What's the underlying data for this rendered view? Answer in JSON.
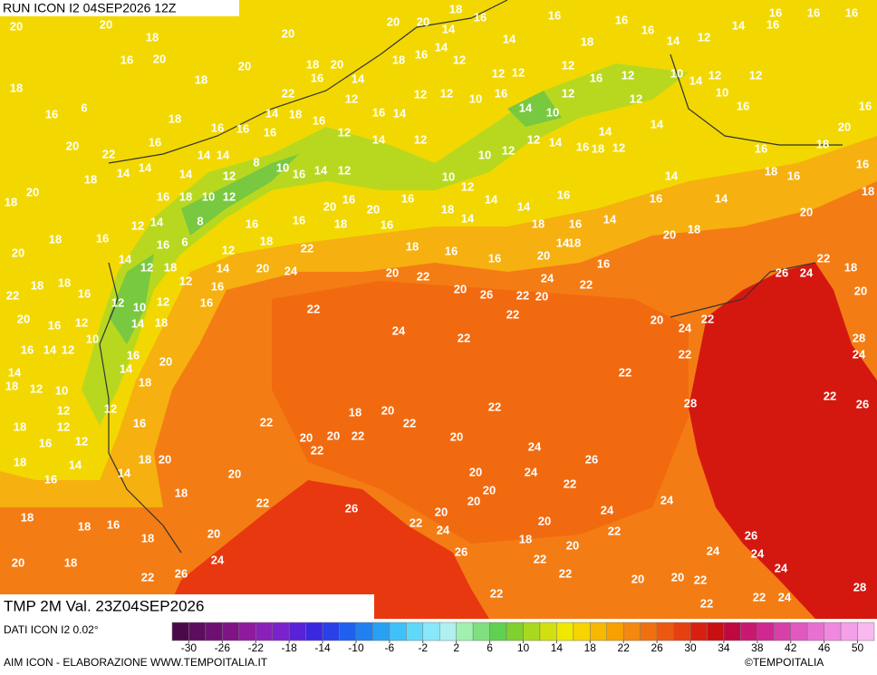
{
  "header": {
    "run": "RUN ICON I2 04SEP2026 12Z"
  },
  "map": {
    "labels": [
      20,
      20,
      18,
      16,
      20,
      18,
      6,
      16,
      20,
      20,
      18,
      20,
      16,
      22,
      18,
      18,
      16,
      16,
      14,
      16,
      18,
      16,
      12,
      14,
      12,
      16,
      14,
      14,
      20,
      20,
      18,
      16,
      18,
      16,
      14,
      12,
      14,
      14,
      12,
      12,
      12,
      16,
      18,
      16,
      16,
      14,
      12,
      14,
      16,
      16,
      16,
      16,
      12,
      12,
      10,
      16,
      14,
      10,
      12,
      16,
      12,
      12,
      10,
      14,
      12,
      12,
      10,
      16,
      16,
      20,
      14,
      14,
      16,
      18,
      12,
      14,
      12,
      12,
      10,
      12,
      12,
      14,
      16,
      10,
      8,
      12,
      14,
      14,
      16,
      14,
      14,
      22,
      18,
      20,
      20,
      18,
      14,
      18,
      16,
      10,
      12,
      8,
      14,
      12,
      6,
      16,
      16,
      16,
      20,
      16,
      20,
      16,
      18,
      16,
      10,
      12,
      14,
      14,
      18,
      18,
      14,
      18,
      16,
      16,
      20,
      14,
      16,
      18,
      16,
      14,
      16,
      14,
      16,
      14,
      18,
      16,
      20,
      16,
      18,
      16,
      18,
      20,
      18,
      22,
      18,
      26,
      24,
      20,
      20,
      18,
      22,
      18,
      18,
      16,
      20,
      12,
      16,
      10,
      14,
      12,
      18,
      12,
      16,
      14,
      12,
      18,
      20,
      24,
      16,
      22,
      16,
      12,
      14,
      18,
      10,
      12,
      16,
      14,
      12,
      14,
      12,
      10,
      18,
      16,
      14,
      20,
      18,
      12,
      12,
      18,
      12,
      16,
      12,
      16,
      18,
      16,
      14,
      14,
      18,
      20,
      18,
      20,
      18,
      18,
      16,
      18,
      20,
      18,
      20,
      24,
      26,
      22,
      22,
      26,
      22,
      24,
      20,
      26,
      18,
      22,
      22,
      20,
      20,
      20,
      20,
      20,
      22,
      24,
      24,
      26,
      24,
      22,
      24,
      20,
      20,
      22,
      22,
      22,
      24,
      24,
      26,
      24,
      22,
      24,
      28,
      22,
      20,
      22,
      20,
      22,
      18,
      20,
      22,
      20,
      22,
      24,
      22,
      22,
      26,
      20,
      22,
      20,
      24,
      22,
      20,
      22,
      22,
      20,
      22,
      22,
      22,
      24,
      28,
      22,
      26,
      28,
      24,
      20,
      22
    ]
  },
  "legend": {
    "title": "TMP 2M Val. 23Z04SEP2026",
    "source": "DATI ICON I2 0.02°",
    "colors": [
      "#4a0a4a",
      "#5c0d5e",
      "#6e1072",
      "#801386",
      "#8f1a9e",
      "#8a20b8",
      "#7a22cc",
      "#5a22d8",
      "#3a28e0",
      "#2a40e8",
      "#2060ee",
      "#2080f0",
      "#28a0f4",
      "#40c0f8",
      "#60d8fa",
      "#88e8fa",
      "#b0f0f0",
      "#a0f0b0",
      "#80e080",
      "#60d050",
      "#80d030",
      "#a8d820",
      "#d0e010",
      "#f0e800",
      "#f8d400",
      "#f8b800",
      "#f8a000",
      "#f48810",
      "#f07010",
      "#ec5810",
      "#e44010",
      "#d82010",
      "#c81010",
      "#c00840",
      "#c81870",
      "#d02890",
      "#d840a8",
      "#e058c0",
      "#e870d0",
      "#f088e0",
      "#f4a0e8",
      "#f8b8f0"
    ],
    "ticks": [
      -30,
      -26,
      -22,
      -18,
      -14,
      -10,
      -6,
      -2,
      2,
      6,
      10,
      14,
      18,
      22,
      26,
      30,
      34,
      38,
      42,
      46,
      50
    ]
  },
  "footer": {
    "left": "AIM ICON - ELABORAZIONE WWW.TEMPOITALIA.IT",
    "right": "©TEMPOITALIA"
  }
}
